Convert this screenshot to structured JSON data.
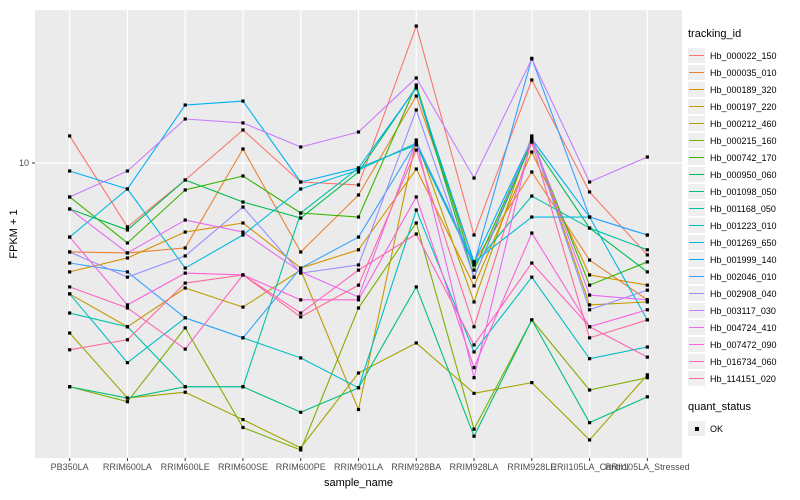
{
  "chart_data": {
    "type": "line",
    "title": "",
    "xlabel": "sample_name",
    "ylabel": "FPKM + 1",
    "y_scale": "log10",
    "y_ticks": [
      "10"
    ],
    "ylim_approx": [
      0.4,
      53
    ],
    "grid": {
      "horizontal_major_at": 10,
      "vertical_major": "at every category"
    },
    "legend_position": "right",
    "point_marker": "small black filled square",
    "categories": [
      "PB350LA",
      "RRIM600LA",
      "RRIM600LE",
      "RRIM600SE",
      "RRIM600PE",
      "RRIM901LA",
      "RRIM928BA",
      "RRIM928LA",
      "RRIM928LE",
      "RRII105LA_Control",
      "RRII105LA_Stressed"
    ],
    "series": [
      {
        "name": "Hb_000022_150",
        "color": "#F8766D",
        "values": [
          13.45,
          4.96,
          8.3,
          14.36,
          8.12,
          7.86,
          44.9,
          4.54,
          24.85,
          7.28,
          3.65
        ]
      },
      {
        "name": "Hb_000035_010",
        "color": "#EA8331",
        "values": [
          3.77,
          3.73,
          3.94,
          11.66,
          3.77,
          7.04,
          20.84,
          3.38,
          9.06,
          3.45,
          2.23
        ]
      },
      {
        "name": "Hb_000189_320",
        "color": "#D89000",
        "values": [
          3.03,
          3.53,
          4.69,
          5.18,
          3.16,
          3.86,
          9.36,
          2.6,
          11.28,
          2.93,
          2.62
        ]
      },
      {
        "name": "Hb_000197_220",
        "color": "#C09B00",
        "values": [
          2.38,
          1.66,
          2.54,
          2.06,
          3.09,
          0.67,
          12.87,
          2.18,
          13.45,
          2.11,
          2.18
        ]
      },
      {
        "name": "Hb_000212_460",
        "color": "#A3A500",
        "values": [
          1.55,
          0.76,
          0.81,
          0.6,
          0.44,
          1.0,
          1.39,
          0.8,
          0.9,
          0.48,
          0.98
        ]
      },
      {
        "name": "Hb_000215_160",
        "color": "#7CAE00",
        "values": [
          0.86,
          0.73,
          1.64,
          0.55,
          0.43,
          2.04,
          5.18,
          0.54,
          1.79,
          0.83,
          0.95
        ]
      },
      {
        "name": "Hb_000742_170",
        "color": "#39B600",
        "values": [
          6.89,
          4.16,
          7.44,
          8.67,
          5.78,
          5.53,
          23.52,
          3.09,
          12.87,
          2.62,
          3.38
        ]
      },
      {
        "name": "Hb_000950_060",
        "color": "#00BB4E",
        "values": [
          6.04,
          4.8,
          8.3,
          6.52,
          5.47,
          9.06,
          23.0,
          2.86,
          12.59,
          4.9,
          3.03
        ]
      },
      {
        "name": "Hb_001098_050",
        "color": "#00BF7D",
        "values": [
          0.86,
          0.76,
          0.86,
          0.86,
          0.65,
          0.85,
          2.57,
          0.5,
          1.79,
          0.58,
          0.77
        ]
      },
      {
        "name": "Hb_001168_050",
        "color": "#00C1A3",
        "values": [
          1.93,
          1.66,
          0.86,
          0.86,
          5.78,
          9.47,
          12.19,
          3.27,
          6.96,
          4.9,
          3.86
        ]
      },
      {
        "name": "Hb_001223_010",
        "color": "#00BFC4",
        "values": [
          2.38,
          1.12,
          1.83,
          1.47,
          1.18,
          0.85,
          5.97,
          1.26,
          2.86,
          1.17,
          1.33
        ]
      },
      {
        "name": "Hb_001269_650",
        "color": "#00BAE0",
        "values": [
          4.44,
          7.52,
          3.16,
          4.54,
          7.52,
          9.26,
          12.45,
          3.38,
          5.53,
          5.53,
          1.79
        ]
      },
      {
        "name": "Hb_001999_140",
        "color": "#00B0F6",
        "values": [
          9.16,
          7.52,
          18.88,
          19.72,
          8.12,
          9.47,
          22.75,
          3.38,
          13.01,
          5.53,
          4.54
        ]
      },
      {
        "name": "Hb_002046_010",
        "color": "#35A2FF",
        "values": [
          3.34,
          3.03,
          1.83,
          1.47,
          3.16,
          4.44,
          12.59,
          3.3,
          31.5,
          5.53,
          4.54
        ]
      },
      {
        "name": "Hb_002908_040",
        "color": "#9590FF",
        "values": [
          3.77,
          2.86,
          3.61,
          6.17,
          2.99,
          3.27,
          17.89,
          2.86,
          13.15,
          2.0,
          2.48
        ]
      },
      {
        "name": "Hb_003117_030",
        "color": "#C77CFF",
        "values": [
          6.89,
          9.16,
          16.2,
          15.52,
          11.92,
          14.05,
          25.41,
          8.48,
          31.3,
          8.12,
          10.68
        ]
      },
      {
        "name": "Hb_004724_410",
        "color": "#E76BF3",
        "values": [
          6.04,
          3.73,
          5.35,
          4.69,
          3.03,
          2.3,
          12.73,
          0.95,
          13.3,
          2.35,
          2.23
        ]
      },
      {
        "name": "Hb_007472_090",
        "color": "#FA62DB",
        "values": [
          4.44,
          2.11,
          2.99,
          2.93,
          2.23,
          2.23,
          6.89,
          1.06,
          4.64,
          1.66,
          2.0
        ]
      },
      {
        "name": "Hb_016734_060",
        "color": "#FF62BC",
        "values": [
          2.57,
          2.04,
          1.3,
          2.93,
          1.93,
          3.09,
          4.59,
          1.36,
          3.34,
          1.66,
          1.19
        ]
      },
      {
        "name": "Hb_114151_020",
        "color": "#FF6A98",
        "values": [
          1.29,
          1.44,
          2.68,
          2.93,
          1.85,
          2.62,
          11.53,
          1.66,
          12.59,
          1.47,
          1.79
        ]
      }
    ],
    "legends": {
      "tracking": {
        "title": "tracking_id"
      },
      "quant": {
        "title": "quant_status",
        "items": [
          "OK"
        ],
        "marker": "black-square"
      }
    },
    "colors": {
      "panel_bg": "#EBEBEB",
      "grid": "#FFFFFF",
      "axis_text": "#4D4D4D",
      "tick": "#333333",
      "point": "#000000",
      "legend_key_bg": "#EFEFEF"
    }
  }
}
